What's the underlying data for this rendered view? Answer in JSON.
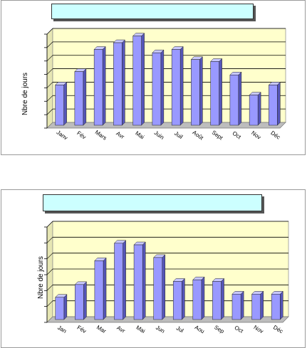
{
  "chart_data": [
    {
      "type": "bar",
      "title": "",
      "ylabel": "Nbre de jours",
      "xlabel": "",
      "categories": [
        "Janv",
        "Fév",
        "Mars",
        "Avr",
        "Mai",
        "Juin",
        "Juil",
        "Août",
        "Sept",
        "Oct",
        "Nov",
        "Déc"
      ],
      "values": [
        6,
        8,
        11.3,
        12.3,
        13.3,
        10.8,
        11.3,
        9.8,
        9.5,
        7.5,
        4.5,
        6
      ],
      "ylim": [
        0,
        14
      ],
      "grid": true,
      "colors": {
        "plot_bg": "#ffffcc",
        "bar_front": "#9999ff",
        "bar_side": "#5555b8",
        "bar_top": "#c8c8ff",
        "title_box": "#ccffff"
      }
    },
    {
      "type": "bar",
      "title": "",
      "ylabel": "Nbre de jours",
      "xlabel": "",
      "categories": [
        "Jan",
        "Fév",
        "Mar",
        "Avr",
        "Mai",
        "Jun",
        "Jul",
        "Aou",
        "Sep",
        "Oct",
        "Nov",
        "Déc"
      ],
      "values": [
        1.4,
        2.2,
        3.7,
        4.8,
        4.7,
        3.9,
        2.4,
        2.5,
        2.4,
        1.6,
        1.6,
        1.6
      ],
      "ylim": [
        0,
        6
      ],
      "grid": true,
      "colors": {
        "plot_bg": "#ffffcc",
        "bar_front": "#9999ff",
        "bar_side": "#5555b8",
        "bar_top": "#c8c8ff",
        "title_box": "#ccffff"
      }
    }
  ]
}
